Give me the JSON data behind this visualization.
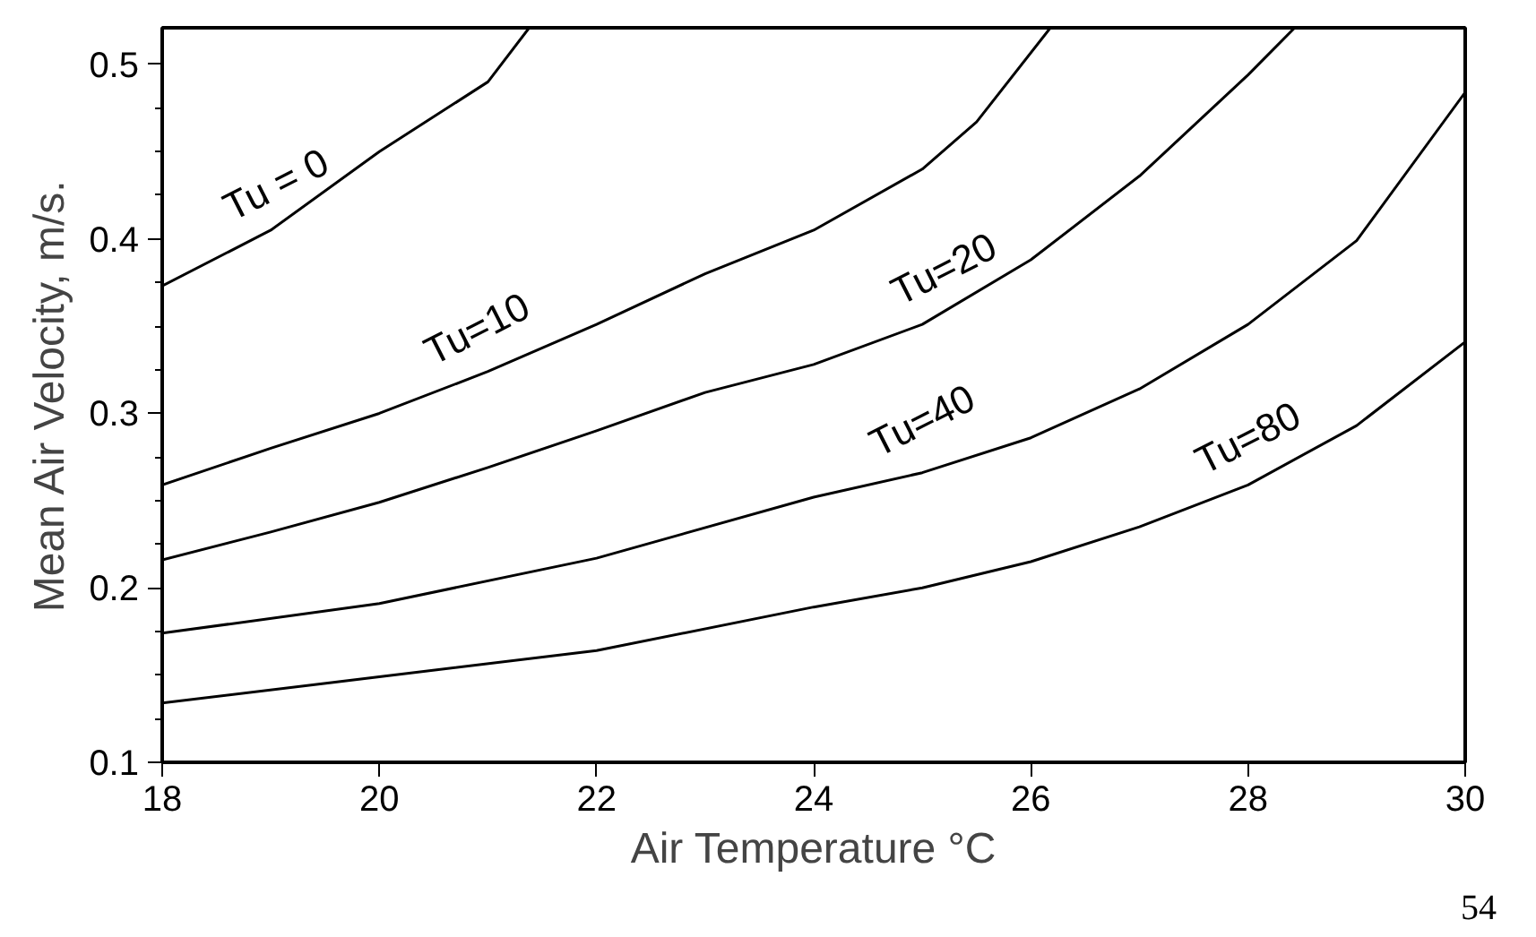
{
  "chart_data": {
    "type": "line",
    "xlabel": "Air Temperature °C",
    "ylabel": "Mean Air Velocity, m/s.",
    "xlim": [
      18,
      30
    ],
    "ylim": [
      0.1,
      0.521
    ],
    "xticks": [
      18,
      20,
      22,
      24,
      26,
      28,
      30
    ],
    "yticks": [
      0.1,
      0.2,
      0.3,
      0.4,
      0.5
    ],
    "grid": false,
    "marker": "none",
    "line_style": "solid",
    "series": [
      {
        "name": "Tu = 0",
        "color": "#000000",
        "x": [
          18,
          19,
          20,
          21,
          21.38
        ],
        "values": [
          0.373,
          0.405,
          0.45,
          0.49,
          0.521
        ]
      },
      {
        "name": "Tu=10",
        "color": "#000000",
        "x": [
          18,
          19,
          20,
          21,
          22,
          23,
          24,
          25,
          25.5,
          26.18
        ],
        "values": [
          0.259,
          0.28,
          0.3,
          0.324,
          0.351,
          0.38,
          0.405,
          0.44,
          0.467,
          0.521
        ]
      },
      {
        "name": "Tu=20",
        "color": "#000000",
        "x": [
          18,
          19,
          20,
          21,
          22,
          23,
          24,
          25,
          26,
          27,
          28,
          28.43
        ],
        "values": [
          0.216,
          0.232,
          0.249,
          0.269,
          0.29,
          0.312,
          0.328,
          0.351,
          0.388,
          0.436,
          0.494,
          0.521
        ]
      },
      {
        "name": "Tu=40",
        "color": "#000000",
        "x": [
          18,
          20,
          22,
          24,
          25,
          26,
          27,
          28,
          29,
          30
        ],
        "values": [
          0.174,
          0.191,
          0.217,
          0.252,
          0.266,
          0.286,
          0.314,
          0.351,
          0.399,
          0.484
        ]
      },
      {
        "name": "Tu=80",
        "color": "#000000",
        "x": [
          18,
          20,
          22,
          24,
          25,
          26,
          27,
          28,
          29,
          30
        ],
        "values": [
          0.134,
          0.149,
          0.164,
          0.189,
          0.2,
          0.215,
          0.235,
          0.259,
          0.293,
          0.341
        ]
      }
    ],
    "annotations": [
      "54"
    ]
  }
}
